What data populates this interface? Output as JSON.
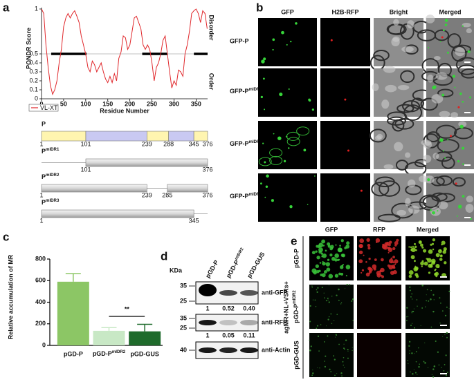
{
  "panel_letters": [
    "a",
    "b",
    "c",
    "d",
    "e"
  ],
  "chart_data": [
    {
      "type": "line",
      "y_label": "PONDR Score",
      "x_label": "Residue Number",
      "side_labels": [
        "Disorder",
        "Order"
      ],
      "x": [
        0,
        5,
        10,
        15,
        20,
        25,
        30,
        35,
        40,
        45,
        50,
        55,
        60,
        65,
        70,
        75,
        80,
        85,
        90,
        95,
        100,
        105,
        110,
        115,
        120,
        125,
        130,
        135,
        140,
        145,
        150,
        155,
        160,
        165,
        170,
        175,
        180,
        185,
        190,
        195,
        200,
        205,
        210,
        215,
        220,
        225,
        230,
        235,
        240,
        245,
        250,
        255,
        260,
        265,
        270,
        275,
        280,
        285,
        290,
        295,
        300,
        305,
        310,
        315,
        320,
        325,
        330,
        335,
        340,
        345,
        350,
        355,
        360,
        365,
        370,
        375
      ],
      "series": [
        {
          "name": "VL-XT",
          "color": "#e0262a",
          "values": [
            1.0,
            0.95,
            0.6,
            0.35,
            0.15,
            0.05,
            0.1,
            0.2,
            0.4,
            0.55,
            0.8,
            0.9,
            0.95,
            0.9,
            0.95,
            0.98,
            0.92,
            0.85,
            0.7,
            0.6,
            0.5,
            0.35,
            0.3,
            0.42,
            0.38,
            0.3,
            0.35,
            0.4,
            0.3,
            0.22,
            0.18,
            0.25,
            0.18,
            0.28,
            0.2,
            0.45,
            0.52,
            0.7,
            0.68,
            0.55,
            0.6,
            0.75,
            0.9,
            0.92,
            0.85,
            0.78,
            0.6,
            0.55,
            0.6,
            0.55,
            0.4,
            0.2,
            0.35,
            0.4,
            0.5,
            0.65,
            0.7,
            0.5,
            0.3,
            0.12,
            0.2,
            0.15,
            0.32,
            0.3,
            0.25,
            0.5,
            0.6,
            0.75,
            0.95,
            0.98,
            1.0,
            0.95,
            0.85,
            0.98,
            0.95,
            0.78
          ]
        }
      ],
      "xlim": [
        0,
        376
      ],
      "ylim": [
        0,
        1
      ],
      "xticks": [
        0,
        50,
        100,
        150,
        200,
        250,
        300,
        350
      ],
      "yticks": [
        0,
        0.1,
        0.2,
        0.3,
        0.4,
        0.5,
        1
      ],
      "threshold": 0.5,
      "disorder_regions": [
        [
          22,
          102
        ],
        [
          228,
          285
        ],
        [
          345,
          376
        ]
      ]
    },
    {
      "type": "bar",
      "y_label": "Relative accumulation of MR",
      "categories": [
        "pGD-P",
        {
          "text": "pGD-P",
          "sup": "mIDR2"
        },
        "pGD-GUS"
      ],
      "values": [
        590,
        135,
        130
      ],
      "errors": [
        75,
        30,
        65
      ],
      "colors": [
        "#8cc665",
        "#c8e8c5",
        "#1f6b2c"
      ],
      "ylim": [
        0,
        800
      ],
      "yticks": [
        0,
        200,
        400,
        600,
        800
      ],
      "significance": {
        "label": "**",
        "between": [
          1,
          2
        ]
      }
    }
  ],
  "domain_map": {
    "scale": [
      1,
      376
    ],
    "constructs": [
      {
        "name": "P",
        "segments": [
          {
            "start": 1,
            "end": 101,
            "color": "#fff5b0"
          },
          {
            "start": 101,
            "end": 239,
            "color": "#c9c9f2"
          },
          {
            "start": 239,
            "end": 288,
            "color": "#fff5b0"
          },
          {
            "start": 288,
            "end": 345,
            "color": "#c9c9f2"
          },
          {
            "start": 345,
            "end": 376,
            "color": "#fff5b0"
          }
        ],
        "labels": [
          1,
          101,
          239,
          288,
          345,
          376
        ]
      },
      {
        "name": {
          "text": "P",
          "sup": "mIDR1"
        },
        "segments": [
          {
            "start": 101,
            "end": 376
          }
        ],
        "labels": [
          101,
          376
        ]
      },
      {
        "name": {
          "text": "P",
          "sup": "mIDR2"
        },
        "segments": [
          {
            "start": 1,
            "end": 239
          },
          {
            "start": 285,
            "end": 376
          }
        ],
        "labels": [
          1,
          239,
          285,
          376
        ]
      },
      {
        "name": {
          "text": "P",
          "sup": "mIDR3"
        },
        "segments": [
          {
            "start": 1,
            "end": 345
          }
        ],
        "labels": [
          1,
          345
        ]
      }
    ]
  },
  "microscopy": {
    "columns": [
      "GFP",
      "H2B-RFP",
      "Bright",
      "Merged"
    ],
    "rows": [
      "GFP-P",
      {
        "text": "GFP-P",
        "sup": "mIDR1"
      },
      {
        "text": "GFP-P",
        "sup": "mIDR2"
      },
      {
        "text": "GFP-P",
        "sup": "mIDR3"
      }
    ]
  },
  "western_blot": {
    "unit": "KDa",
    "lanes": [
      "pGD-P",
      {
        "text": "pGD-P",
        "sup": "mIDR2"
      },
      "pGD-GUS"
    ],
    "blots": [
      {
        "antibody": "anti-GFP",
        "markers": [
          35,
          25
        ],
        "quantification": [
          "1",
          "0.52",
          "0.40"
        ]
      },
      {
        "antibody": "anti-RFP",
        "markers": [
          35,
          25
        ],
        "quantification": [
          "1",
          "0.05",
          "0.11"
        ]
      },
      {
        "antibody": "anti-Actin",
        "markers": [
          40
        ]
      }
    ]
  },
  "infiltration": {
    "condition": "agMR+NL+VSRs+",
    "columns": [
      "GFP",
      "RFP",
      "Merged"
    ],
    "rows": [
      "pGD-P",
      {
        "text": "pGD-P",
        "sup": "mIDR2"
      },
      "pGD-GUS"
    ]
  }
}
